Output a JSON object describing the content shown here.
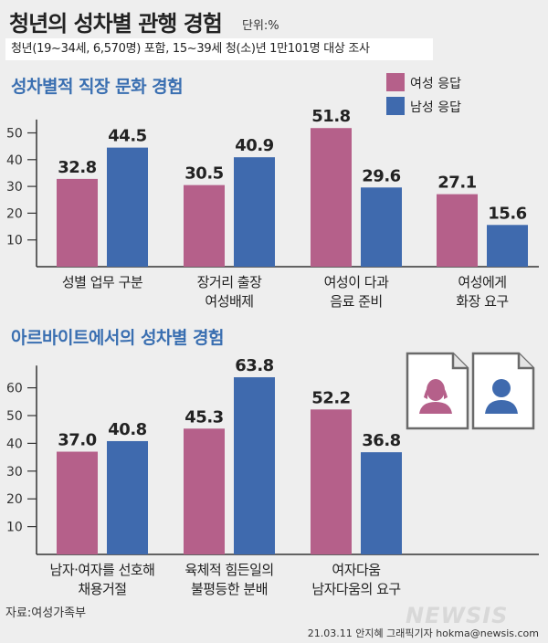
{
  "header": {
    "title": "청년의 성차별 관행 경험",
    "unit": "단위:%",
    "subtitle": "청년(19~34세, 6,570명) 포함, 15~39세 청(소)년 1만101명 대상 조사"
  },
  "legend": [
    {
      "label": "여성 응답",
      "color": "#b5608a"
    },
    {
      "label": "남성 응답",
      "color": "#3f6aae"
    }
  ],
  "icons": [
    "female-document-icon",
    "male-document-icon"
  ],
  "chart_data": [
    {
      "type": "bar",
      "title": "성차별적 직장 문화 경험",
      "categories": [
        "성별 업무 구분",
        "장거리 출장\n여성배제",
        "여성이 다과\n음료 준비",
        "여성에게\n화장 요구"
      ],
      "series": [
        {
          "name": "여성 응답",
          "values": [
            32.8,
            30.5,
            51.8,
            27.1
          ],
          "color": "#b5608a"
        },
        {
          "name": "남성 응답",
          "values": [
            44.5,
            40.9,
            29.6,
            15.6
          ],
          "color": "#3f6aae"
        }
      ],
      "yticks": [
        10,
        20,
        30,
        40,
        50
      ],
      "ylim": [
        0,
        55
      ],
      "legend": "top-right"
    },
    {
      "type": "bar",
      "title": "아르바이트에서의 성차별 경험",
      "categories": [
        "남자·여자를 선호해\n채용거절",
        "육체적 힘든일의\n불평등한 분배",
        "여자다움\n남자다움의 요구"
      ],
      "series": [
        {
          "name": "여성 응답",
          "values": [
            37.0,
            45.3,
            52.2
          ],
          "color": "#b5608a"
        },
        {
          "name": "남성 응답",
          "values": [
            40.8,
            63.8,
            36.8
          ],
          "color": "#3f6aae"
        }
      ],
      "yticks": [
        10,
        20,
        30,
        40,
        50,
        60
      ],
      "ylim": [
        0,
        68
      ]
    }
  ],
  "footer": {
    "source": "자료:여성가족부",
    "watermark": "NEWSIS",
    "credit": "21.03.11  안지혜  그래픽기자  hokma@newsis.com"
  }
}
